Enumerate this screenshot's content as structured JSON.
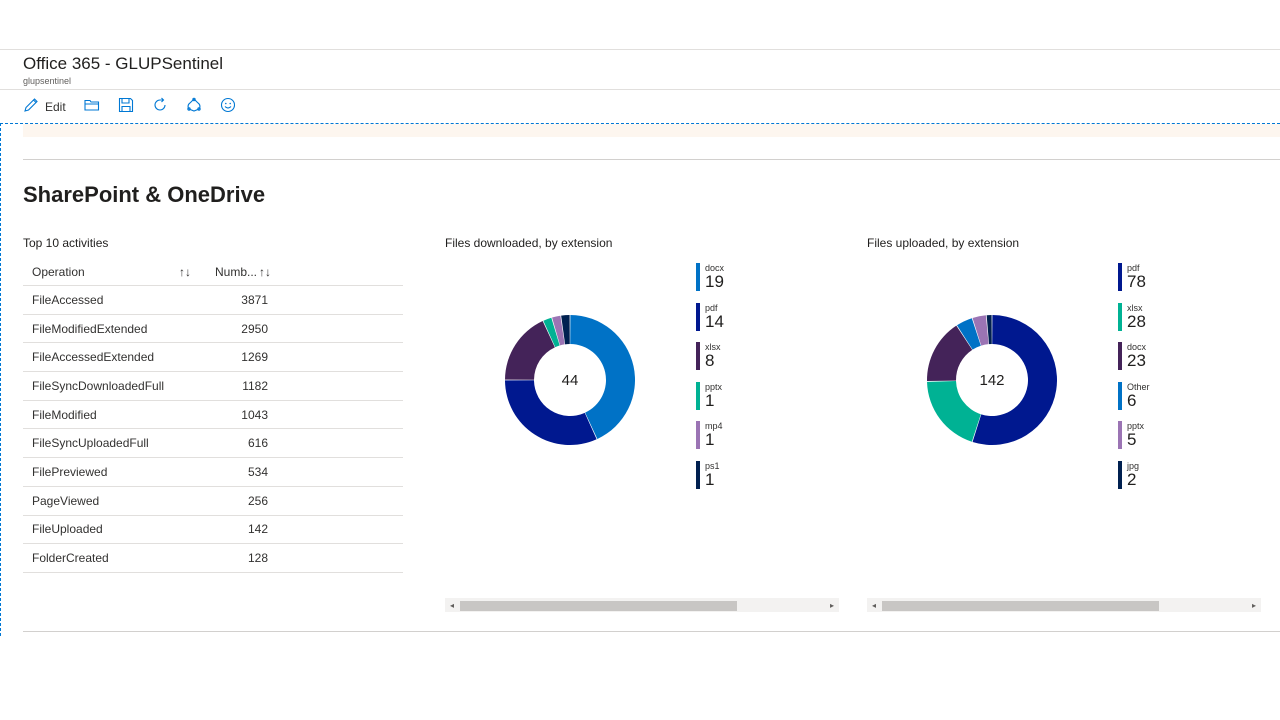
{
  "header": {
    "title": "Office 365 - GLUPSentinel",
    "subtitle": "glupsentinel"
  },
  "toolbar": {
    "edit_label": "Edit"
  },
  "section": {
    "title": "SharePoint & OneDrive"
  },
  "activities": {
    "title": "Top 10 activities",
    "columns": [
      "Operation",
      "Numb..."
    ],
    "rows": [
      {
        "operation": "FileAccessed",
        "count": "3871"
      },
      {
        "operation": "FileModifiedExtended",
        "count": "2950"
      },
      {
        "operation": "FileAccessedExtended",
        "count": "1269"
      },
      {
        "operation": "FileSyncDownloadedFull",
        "count": "1182"
      },
      {
        "operation": "FileModified",
        "count": "1043"
      },
      {
        "operation": "FileSyncUploadedFull",
        "count": "616"
      },
      {
        "operation": "FilePreviewed",
        "count": "534"
      },
      {
        "operation": "PageViewed",
        "count": "256"
      },
      {
        "operation": "FileUploaded",
        "count": "142"
      },
      {
        "operation": "FolderCreated",
        "count": "128"
      }
    ]
  },
  "chart_data": [
    {
      "type": "pie",
      "title": "Files downloaded, by extension",
      "total": "44",
      "categories": [
        "docx",
        "pdf",
        "xlsx",
        "pptx",
        "mp4",
        "ps1"
      ],
      "values": [
        19,
        14,
        8,
        1,
        1,
        1
      ],
      "colors": [
        "#0072c6",
        "#00188f",
        "#442359",
        "#00b294",
        "#9b74b4",
        "#002050"
      ]
    },
    {
      "type": "pie",
      "title": "Files uploaded, by extension",
      "total": "142",
      "categories": [
        "pdf",
        "xlsx",
        "docx",
        "Other",
        "pptx",
        "jpg"
      ],
      "values": [
        78,
        28,
        23,
        6,
        5,
        2
      ],
      "colors": [
        "#00188f",
        "#00b294",
        "#442359",
        "#0072c6",
        "#9b74b4",
        "#002050"
      ]
    }
  ]
}
